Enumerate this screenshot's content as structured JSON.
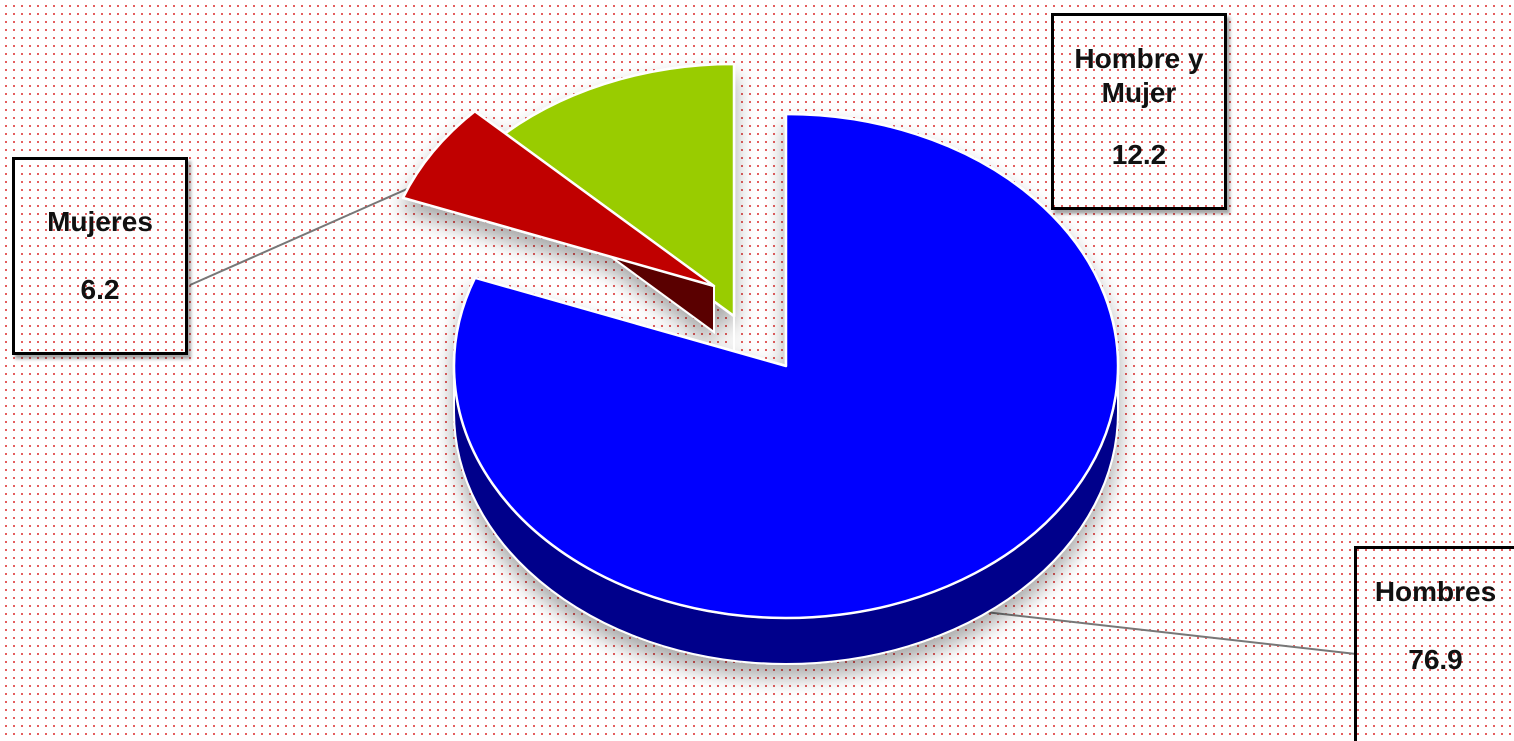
{
  "chart_data": {
    "type": "pie",
    "categories": [
      "Hombres",
      "Mujeres",
      "Hombre y Mujer"
    ],
    "values": [
      76.9,
      6.2,
      12.2
    ],
    "value_labels": [
      "76.9",
      "6.2",
      "12.2"
    ],
    "colors": {
      "Hombres": "#0000ff",
      "Mujeres": "#c00000",
      "Hombre y Mujer": "#99cc00"
    },
    "side_colors": {
      "Hombres": "#00008b",
      "Mujeres": "#5a0000",
      "Hombre y Mujer": "#3f5200"
    },
    "style": "3d-exploded",
    "legend": "none"
  },
  "labels": {
    "hombres": {
      "category": "Hombres",
      "value": "76.9"
    },
    "mujeres": {
      "category": "Mujeres",
      "value": "6.2"
    },
    "ambos": {
      "category": "Hombre y Mujer",
      "value": "12.2"
    }
  }
}
